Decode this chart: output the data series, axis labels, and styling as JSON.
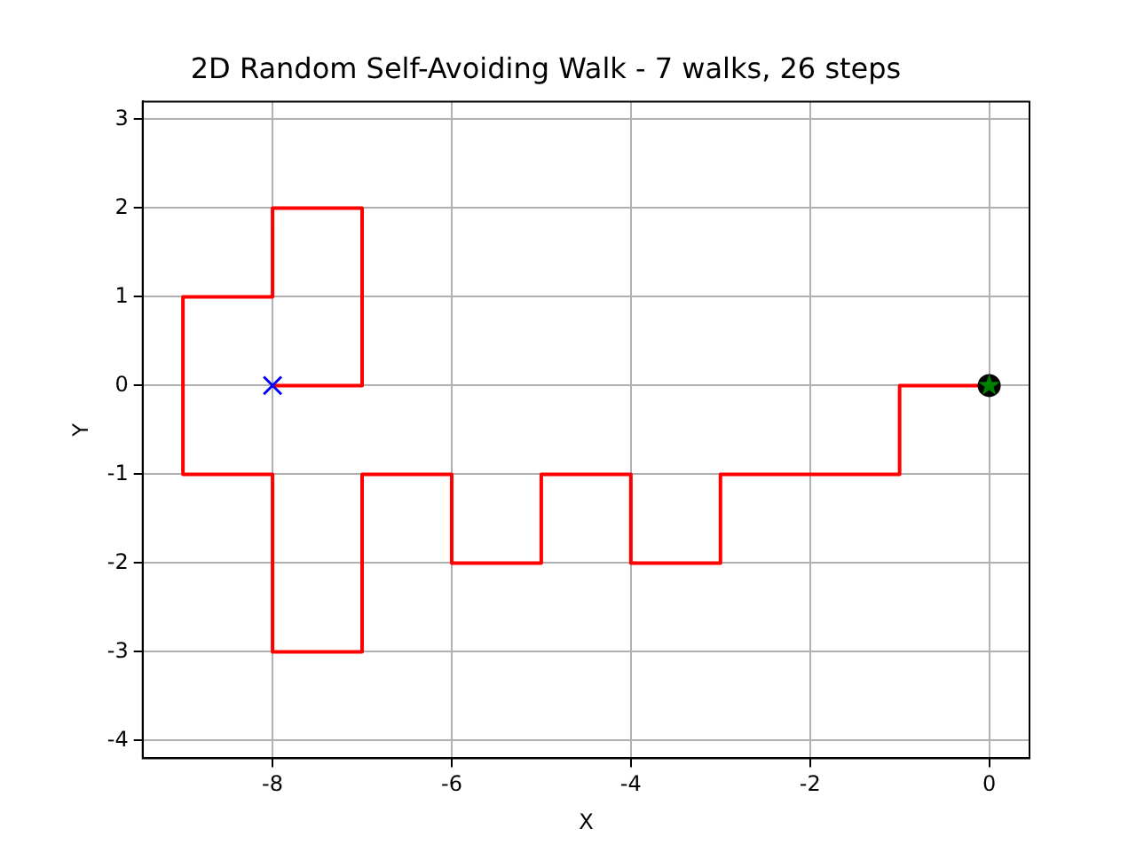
{
  "chart_data": {
    "type": "line",
    "title": "2D Random Self-Avoiding Walk - 7 walks, 26 steps",
    "xlabel": "X",
    "ylabel": "Y",
    "xlim": [
      -9.45,
      0.45
    ],
    "xticks": [
      -8,
      -6,
      -4,
      -2,
      0
    ],
    "ylim": [
      -4.2,
      3.2
    ],
    "yticks": [
      -4,
      -3,
      -2,
      -1,
      0,
      1,
      2,
      3
    ],
    "grid": true,
    "legend": false,
    "series": [
      {
        "color": "#ff0000",
        "marker": "none",
        "x": [
          0,
          -1,
          -1,
          -3,
          -3,
          -4,
          -4,
          -5,
          -5,
          -6,
          -6,
          -7,
          -7,
          -8,
          -8,
          -9,
          -9,
          -8,
          -8,
          -7,
          -7,
          -8
        ],
        "values": [
          0,
          0,
          -1,
          -1,
          -2,
          -2,
          -1,
          -1,
          -2,
          -2,
          -1,
          -1,
          -3,
          -3,
          -1,
          -1,
          1,
          1,
          2,
          2,
          0,
          0
        ]
      },
      {
        "type": "scatter",
        "color": "#000000",
        "marker": "circle",
        "x": [
          0
        ],
        "values": [
          0
        ]
      },
      {
        "type": "scatter",
        "color": "#008000",
        "marker": "star",
        "x": [
          0
        ],
        "values": [
          0
        ]
      },
      {
        "type": "scatter",
        "color": "#0000ff",
        "marker": "cross",
        "x": [
          -8
        ],
        "values": [
          0
        ]
      }
    ]
  }
}
